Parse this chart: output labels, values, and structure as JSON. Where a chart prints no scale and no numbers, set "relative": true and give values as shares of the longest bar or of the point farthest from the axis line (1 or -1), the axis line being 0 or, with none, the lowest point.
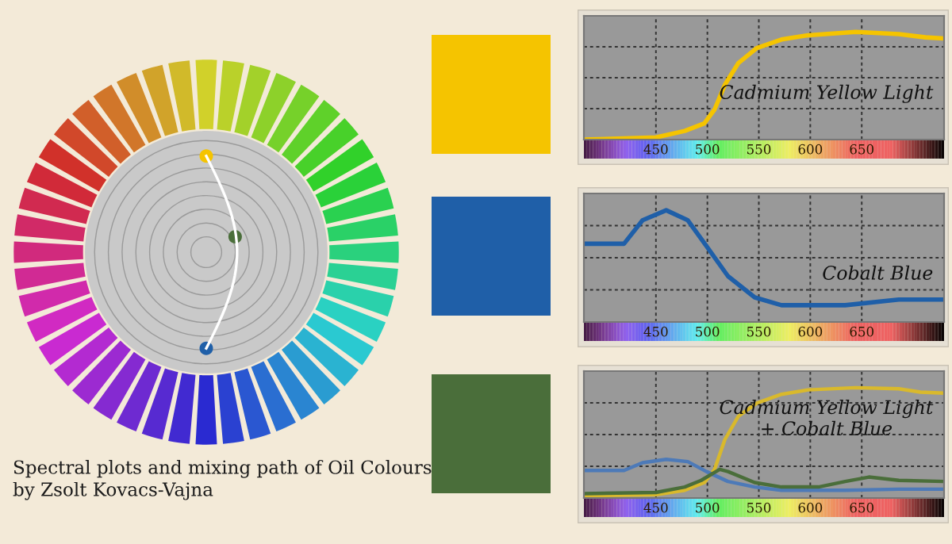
{
  "chart_data": [
    {
      "type": "line",
      "relative": true,
      "xlim": [
        380,
        730
      ],
      "xticks": [
        450,
        500,
        550,
        600,
        650
      ],
      "grid": true,
      "tick_labels": "x",
      "annotations": [
        "Cadmium Yellow Light"
      ],
      "series": [
        {
          "color": "#f5c400",
          "x": [
            380,
            450,
            478,
            497,
            507,
            517,
            530,
            548,
            572,
            598,
            644,
            686,
            712,
            730
          ],
          "values": [
            0,
            0.02,
            0.08,
            0.15,
            0.28,
            0.51,
            0.71,
            0.85,
            0.93,
            0.97,
            1.0,
            0.98,
            0.95,
            0.94
          ]
        }
      ]
    },
    {
      "type": "line",
      "relative": true,
      "xlim": [
        380,
        730
      ],
      "xticks": [
        450,
        500,
        550,
        600,
        650
      ],
      "grid": true,
      "tick_labels": "x",
      "annotations": [
        "Cobalt Blue"
      ],
      "series": [
        {
          "color": "#1f5fa8",
          "x": [
            380,
            419,
            437,
            460,
            481,
            499,
            520,
            546,
            572,
            634,
            686,
            730
          ],
          "values": [
            0.7,
            0.7,
            0.91,
            1.0,
            0.91,
            0.68,
            0.41,
            0.22,
            0.15,
            0.15,
            0.2,
            0.2
          ]
        }
      ]
    },
    {
      "type": "line",
      "relative": true,
      "xlim": [
        380,
        730
      ],
      "xticks": [
        450,
        500,
        550,
        600,
        650
      ],
      "grid": true,
      "tick_labels": "x",
      "annotations": [
        "Cadmium Yellow Light\n+ Cobalt Blue"
      ],
      "series": [
        {
          "color": "#d9b92c",
          "x": [
            380,
            450,
            478,
            497,
            507,
            517,
            530,
            548,
            572,
            598,
            644,
            686,
            707,
            730
          ],
          "values": [
            0.02,
            0.03,
            0.07,
            0.14,
            0.26,
            0.53,
            0.74,
            0.86,
            0.94,
            0.98,
            1.0,
            0.99,
            0.96,
            0.95
          ]
        },
        {
          "color": "#4d7ab8",
          "x": [
            380,
            419,
            437,
            460,
            481,
            499,
            520,
            546,
            572,
            634,
            686,
            730
          ],
          "values": [
            0.25,
            0.25,
            0.32,
            0.35,
            0.33,
            0.24,
            0.15,
            0.1,
            0.07,
            0.07,
            0.08,
            0.08
          ]
        },
        {
          "color": "#4a6e3a",
          "x": [
            380,
            450,
            478,
            494,
            512,
            520,
            546,
            572,
            608,
            634,
            657,
            686,
            730
          ],
          "values": [
            0.04,
            0.05,
            0.1,
            0.16,
            0.26,
            0.24,
            0.14,
            0.1,
            0.1,
            0.15,
            0.19,
            0.16,
            0.15
          ]
        }
      ]
    },
    {
      "type": "other",
      "annotations": [
        "Spectral plots and mixing path of Oil Colours\nby Zsolt Kovacs-Vajna"
      ]
    }
  ]
}
